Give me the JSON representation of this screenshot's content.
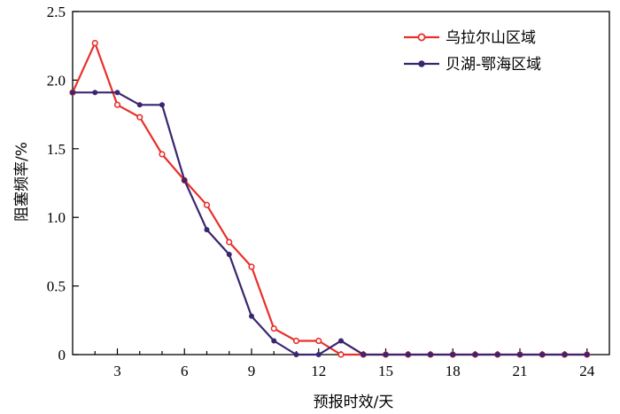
{
  "chart_data": {
    "type": "line",
    "xlabel": "预报时效/天",
    "ylabel": "阻塞频率/%",
    "xlim": [
      1,
      25
    ],
    "ylim": [
      0,
      2.5
    ],
    "x_ticks": [
      3,
      6,
      9,
      12,
      15,
      18,
      21,
      24
    ],
    "y_ticks": [
      "0",
      "0.5",
      "1.0",
      "1.5",
      "2.0",
      "2.5"
    ],
    "y_tick_values": [
      0,
      0.5,
      1.0,
      1.5,
      2.0,
      2.5
    ],
    "x": [
      1,
      2,
      3,
      4,
      5,
      6,
      7,
      8,
      9,
      10,
      11,
      12,
      13,
      14,
      15,
      16,
      17,
      18,
      19,
      20,
      21,
      22,
      23,
      24
    ],
    "legend_position": "top-right",
    "grid": false,
    "series": [
      {
        "name": "乌拉尔山区域",
        "color": "#e8302a",
        "marker": "open-circle",
        "values": [
          1.91,
          2.27,
          1.82,
          1.73,
          1.46,
          1.27,
          1.09,
          0.82,
          0.64,
          0.19,
          0.1,
          0.1,
          0.0,
          0.0,
          0.0,
          0.0,
          0.0,
          0.0,
          0.0,
          0.0,
          0.0,
          0.0,
          0.0,
          0.0
        ]
      },
      {
        "name": "贝湖-鄂海区域",
        "color": "#3a2670",
        "marker": "filled-circle",
        "values": [
          1.91,
          1.91,
          1.91,
          1.82,
          1.82,
          1.27,
          0.91,
          0.73,
          0.28,
          0.1,
          0.0,
          0.0,
          0.1,
          0.0,
          0.0,
          0.0,
          0.0,
          0.0,
          0.0,
          0.0,
          0.0,
          0.0,
          0.0,
          0.0
        ]
      }
    ]
  }
}
